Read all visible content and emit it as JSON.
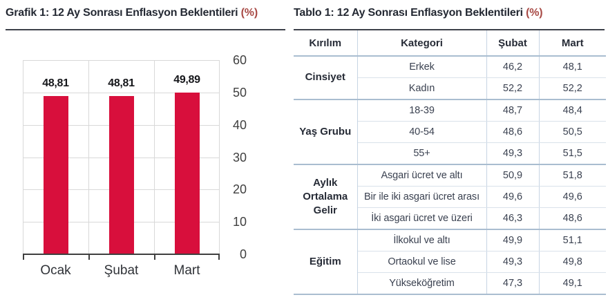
{
  "colors": {
    "bar": "#d80f3c",
    "title_text": "#242933",
    "title_suffix": "#a84a45",
    "grid": "#d8d8d8",
    "axis": "#3f3f3f",
    "table_border_inner": "#d9e1ea",
    "table_border_group": "#a9bdd0"
  },
  "chart_data": [
    {
      "type": "bar",
      "title": "Grafik 1: 12 Ay Sonrası Enflasyon Beklentileri (%)",
      "title_main": "Grafik 1: 12 Ay Sonrası Enflasyon Beklentileri",
      "title_suffix": "(%)",
      "categories": [
        "Ocak",
        "Şubat",
        "Mart"
      ],
      "values": [
        48.81,
        48.81,
        49.89
      ],
      "value_labels": [
        "48,81",
        "48,81",
        "49,89"
      ],
      "xlabel": "",
      "ylabel": "",
      "ylim": [
        0,
        60
      ],
      "yticks": [
        0,
        10,
        20,
        30,
        40,
        50,
        60
      ],
      "y_axis_side": "right",
      "grid": true,
      "bar_color": "#d80f3c"
    },
    {
      "type": "table",
      "title": "Tablo 1: 12 Ay Sonrası Enflasyon Beklentileri (%)",
      "title_main": "Tablo 1: 12 Ay Sonrası Enflasyon Beklentileri",
      "title_suffix": "(%)",
      "columns": [
        "Kırılım",
        "Kategori",
        "Şubat",
        "Mart"
      ],
      "groups": [
        {
          "label": "Cinsiyet",
          "rows": [
            [
              "Erkek",
              "46,2",
              "48,1"
            ],
            [
              "Kadın",
              "52,2",
              "52,2"
            ]
          ]
        },
        {
          "label": "Yaş Grubu",
          "rows": [
            [
              "18-39",
              "48,7",
              "48,4"
            ],
            [
              "40-54",
              "48,6",
              "50,5"
            ],
            [
              "55+",
              "49,3",
              "51,5"
            ]
          ]
        },
        {
          "label": "Aylık Ortalama Gelir",
          "rows": [
            [
              "Asgari ücret ve altı",
              "50,9",
              "51,8"
            ],
            [
              "Bir ile iki asgari ücret arası",
              "49,6",
              "49,6"
            ],
            [
              "İki asgari ücret ve üzeri",
              "46,3",
              "48,6"
            ]
          ]
        },
        {
          "label": "Eğitim",
          "rows": [
            [
              "İlkokul ve altı",
              "49,9",
              "51,1"
            ],
            [
              "Ortaokul ve lise",
              "49,3",
              "49,8"
            ],
            [
              "Yükseköğretim",
              "47,3",
              "49,1"
            ]
          ]
        }
      ]
    }
  ]
}
